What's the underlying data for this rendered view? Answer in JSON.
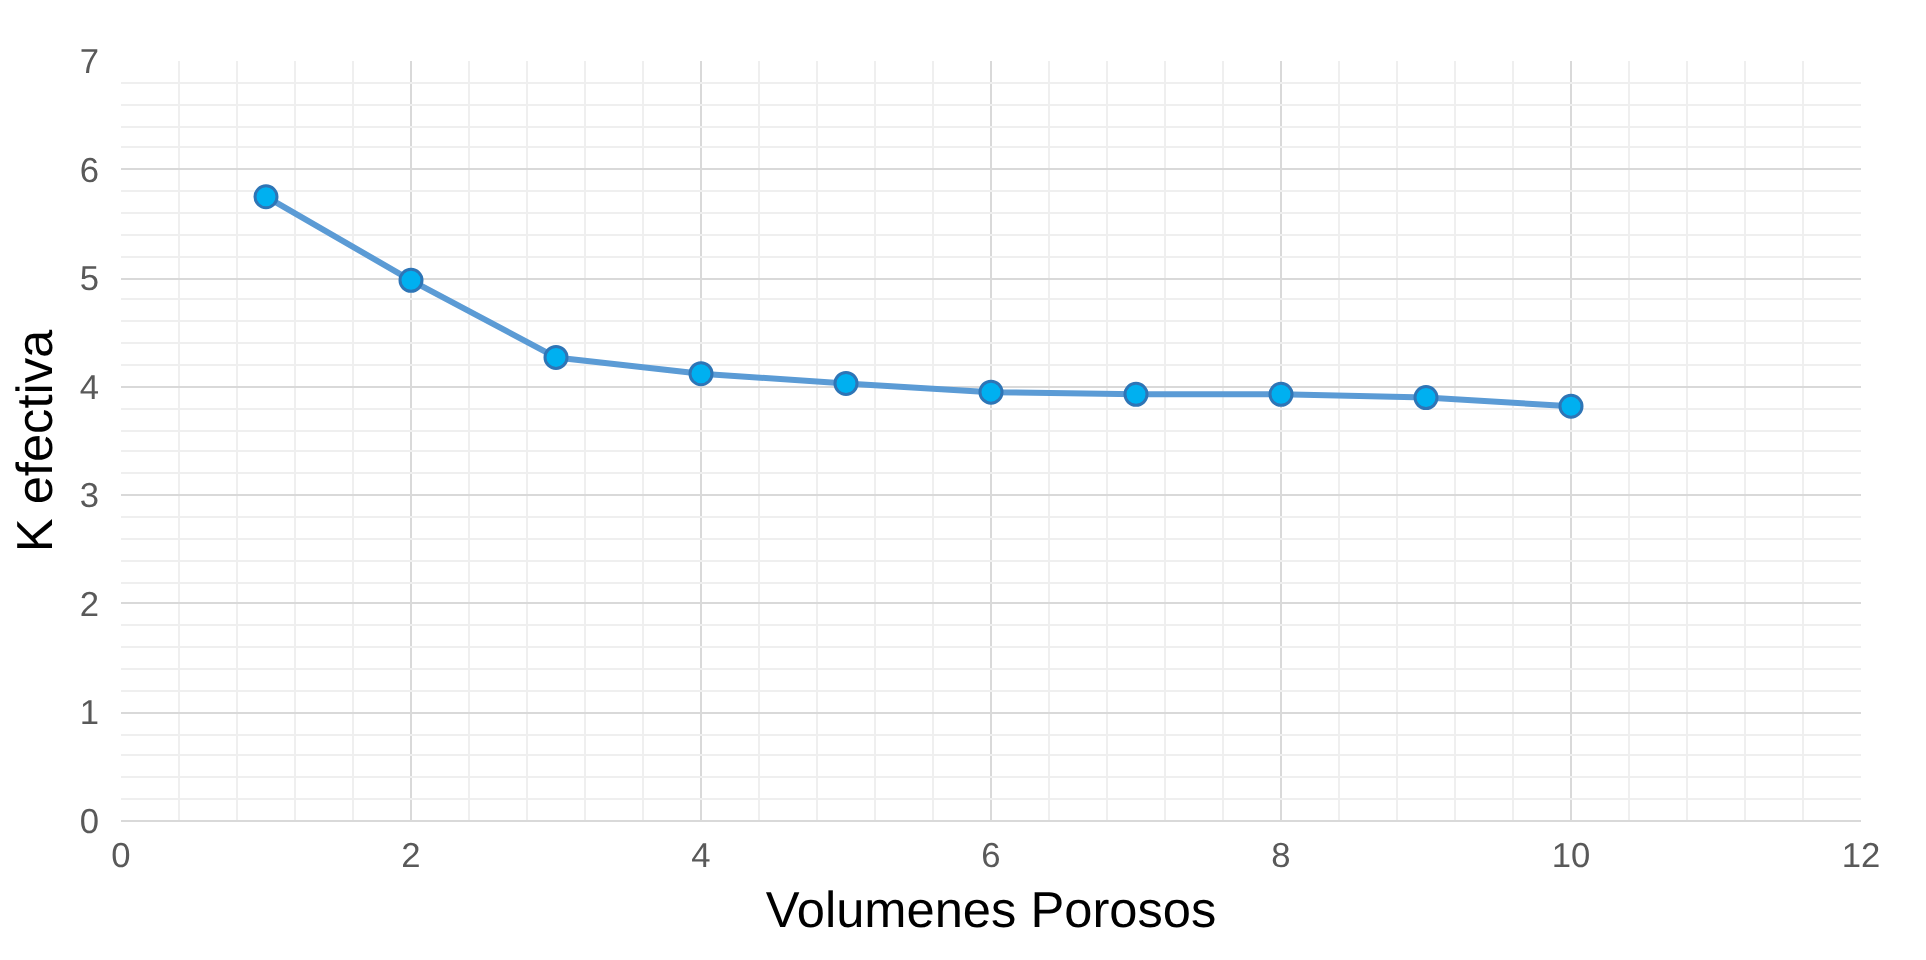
{
  "chart_data": {
    "type": "line",
    "xlabel": "Volumenes Porosos",
    "ylabel": "K efectiva",
    "x": [
      1,
      2,
      3,
      4,
      5,
      6,
      7,
      8,
      9,
      10
    ],
    "series": [
      {
        "color": "#5b9bd5",
        "values": [
          5.75,
          4.98,
          4.27,
          4.12,
          4.03,
          3.95,
          3.93,
          3.93,
          3.9,
          3.82
        ]
      }
    ],
    "xlim": [
      0,
      12
    ],
    "xticks": [
      0,
      2,
      4,
      6,
      8,
      10,
      12
    ],
    "ylim": [
      0,
      7
    ],
    "yticks": [
      0,
      1,
      2,
      3,
      4,
      5,
      6,
      7
    ],
    "grid": true,
    "marker": "circle",
    "line_style": "solid"
  }
}
